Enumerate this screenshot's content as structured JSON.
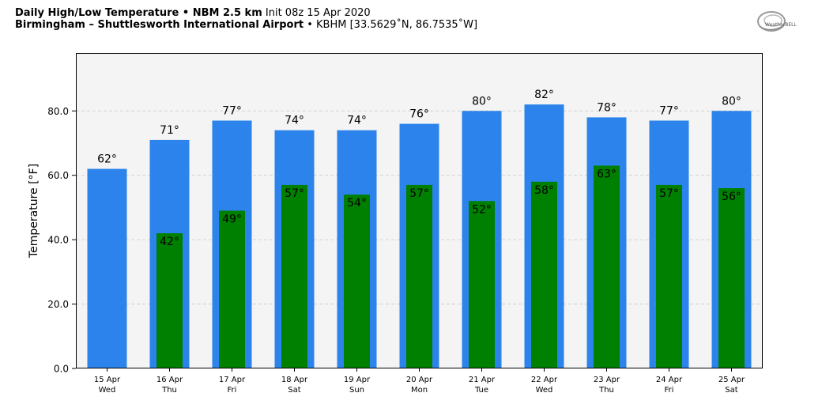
{
  "header": {
    "line1_bold": "Daily High/Low Temperature • NBM 2.5 km",
    "line1_regular": "Init 08z 15 Apr 2020",
    "line2_bold": "Birmingham – Shuttlesworth International Airport",
    "line2_regular": "• KBHM [33.5629˚N, 86.7535˚W]"
  },
  "logo": {
    "text": "WeatherBELL"
  },
  "colors": {
    "high": "#2b83eb",
    "low": "#008000",
    "plot_bg": "#f4f4f4",
    "grid": "#c8c8c8"
  },
  "chart_data": {
    "type": "bar",
    "categories": [
      "15 Apr\nWed",
      "16 Apr\nThu",
      "17 Apr\nFri",
      "18 Apr\nSat",
      "19 Apr\nSun",
      "20 Apr\nMon",
      "21 Apr\nTue",
      "22 Apr\nWed",
      "23 Apr\nThu",
      "24 Apr\nFri",
      "25 Apr\nSat"
    ],
    "dates": [
      "15 Apr",
      "16 Apr",
      "17 Apr",
      "18 Apr",
      "19 Apr",
      "20 Apr",
      "21 Apr",
      "22 Apr",
      "23 Apr",
      "24 Apr",
      "25 Apr"
    ],
    "weekdays": [
      "Wed",
      "Thu",
      "Fri",
      "Sat",
      "Sun",
      "Mon",
      "Tue",
      "Wed",
      "Thu",
      "Fri",
      "Sat"
    ],
    "series": [
      {
        "key": "high",
        "values": [
          62,
          71,
          77,
          74,
          74,
          76,
          80,
          82,
          78,
          77,
          80
        ],
        "labels": [
          "62°",
          "71°",
          "77°",
          "74°",
          "74°",
          "76°",
          "80°",
          "82°",
          "78°",
          "77°",
          "80°"
        ]
      },
      {
        "key": "low",
        "values": [
          null,
          42,
          49,
          57,
          54,
          57,
          52,
          58,
          63,
          57,
          56
        ],
        "labels": [
          "",
          "42°",
          "49°",
          "57°",
          "54°",
          "57°",
          "52°",
          "58°",
          "63°",
          "57°",
          "56°"
        ]
      }
    ],
    "ylabel": "Temperature [°F]",
    "xlabel": "",
    "ylim": [
      0,
      98
    ],
    "yticks": [
      0,
      20,
      40,
      60,
      80
    ],
    "ytick_labels": [
      "0.0",
      "20.0",
      "40.0",
      "60.0",
      "80.0"
    ],
    "grid": "horizontal dashed"
  }
}
